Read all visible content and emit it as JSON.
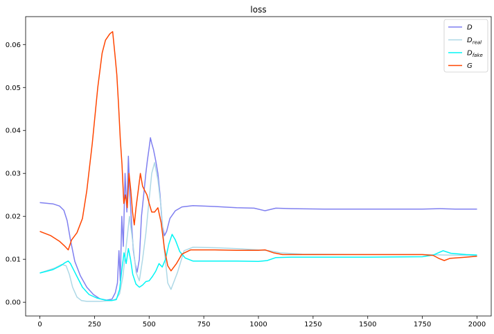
{
  "chart_data": {
    "type": "line",
    "title": "loss",
    "xlabel": "",
    "ylabel": "",
    "xlim": [
      -65,
      2065
    ],
    "ylim": [
      -0.0032,
      0.0665
    ],
    "xticks": [
      0,
      250,
      500,
      750,
      1000,
      1250,
      1500,
      1750,
      2000
    ],
    "yticks": [
      0.0,
      0.01,
      0.02,
      0.03,
      0.04,
      0.05,
      0.06
    ],
    "ytick_labels": [
      "0.00",
      "0.01",
      "0.02",
      "0.03",
      "0.04",
      "0.05",
      "0.06"
    ],
    "grid": false,
    "legend_position": "top-right",
    "series": [
      {
        "name": "D",
        "sub": "",
        "color": "#7f7ff0",
        "points": [
          [
            0,
            0.0232
          ],
          [
            60,
            0.0229
          ],
          [
            90,
            0.0224
          ],
          [
            110,
            0.0214
          ],
          [
            125,
            0.019
          ],
          [
            140,
            0.0145
          ],
          [
            160,
            0.0095
          ],
          [
            185,
            0.0062
          ],
          [
            215,
            0.0035
          ],
          [
            245,
            0.0018
          ],
          [
            275,
            0.0008
          ],
          [
            305,
            0.0005
          ],
          [
            330,
            0.0007
          ],
          [
            345,
            0.0022
          ],
          [
            355,
            0.0045
          ],
          [
            362,
            0.012
          ],
          [
            368,
            0.005
          ],
          [
            375,
            0.02
          ],
          [
            382,
            0.013
          ],
          [
            390,
            0.03
          ],
          [
            398,
            0.021
          ],
          [
            405,
            0.034
          ],
          [
            412,
            0.025
          ],
          [
            420,
            0.018
          ],
          [
            428,
            0.012
          ],
          [
            436,
            0.009
          ],
          [
            445,
            0.007
          ],
          [
            455,
            0.01
          ],
          [
            465,
            0.02
          ],
          [
            475,
            0.025
          ],
          [
            485,
            0.03
          ],
          [
            492,
            0.033
          ],
          [
            500,
            0.036
          ],
          [
            506,
            0.0383
          ],
          [
            512,
            0.037
          ],
          [
            520,
            0.0355
          ],
          [
            530,
            0.033
          ],
          [
            540,
            0.03
          ],
          [
            550,
            0.025
          ],
          [
            560,
            0.018
          ],
          [
            570,
            0.0155
          ],
          [
            580,
            0.0165
          ],
          [
            595,
            0.0195
          ],
          [
            620,
            0.0213
          ],
          [
            650,
            0.0222
          ],
          [
            700,
            0.0225
          ],
          [
            800,
            0.0223
          ],
          [
            900,
            0.022
          ],
          [
            980,
            0.0219
          ],
          [
            1030,
            0.0213
          ],
          [
            1080,
            0.0219
          ],
          [
            1150,
            0.0218
          ],
          [
            1300,
            0.0217
          ],
          [
            1500,
            0.0217
          ],
          [
            1750,
            0.0217
          ],
          [
            1830,
            0.0218
          ],
          [
            1900,
            0.0217
          ],
          [
            2000,
            0.0217
          ]
        ]
      },
      {
        "name": "D",
        "sub": "real",
        "color": "#add8e6",
        "points": [
          [
            0,
            0.0068
          ],
          [
            70,
            0.008
          ],
          [
            100,
            0.0088
          ],
          [
            120,
            0.0085
          ],
          [
            135,
            0.0065
          ],
          [
            150,
            0.0035
          ],
          [
            170,
            0.0012
          ],
          [
            190,
            0.0004
          ],
          [
            215,
            0.0002
          ],
          [
            245,
            0.0002
          ],
          [
            275,
            0.0002
          ],
          [
            305,
            0.0003
          ],
          [
            330,
            0.0004
          ],
          [
            350,
            0.0008
          ],
          [
            365,
            0.002
          ],
          [
            380,
            0.006
          ],
          [
            395,
            0.013
          ],
          [
            410,
            0.02
          ],
          [
            425,
            0.014
          ],
          [
            440,
            0.007
          ],
          [
            455,
            0.005
          ],
          [
            470,
            0.01
          ],
          [
            485,
            0.016
          ],
          [
            500,
            0.024
          ],
          [
            512,
            0.03
          ],
          [
            525,
            0.0325
          ],
          [
            540,
            0.0285
          ],
          [
            555,
            0.022
          ],
          [
            570,
            0.012
          ],
          [
            585,
            0.0045
          ],
          [
            600,
            0.003
          ],
          [
            630,
            0.007
          ],
          [
            660,
            0.012
          ],
          [
            700,
            0.0128
          ],
          [
            800,
            0.0127
          ],
          [
            900,
            0.0125
          ],
          [
            1000,
            0.0122
          ],
          [
            1050,
            0.012
          ],
          [
            1100,
            0.0115
          ],
          [
            1200,
            0.0112
          ],
          [
            1500,
            0.0111
          ],
          [
            1750,
            0.0111
          ],
          [
            1850,
            0.011
          ],
          [
            2000,
            0.0109
          ]
        ]
      },
      {
        "name": "D",
        "sub": "fake",
        "color": "#00f5f5",
        "points": [
          [
            0,
            0.0068
          ],
          [
            60,
            0.0076
          ],
          [
            95,
            0.0085
          ],
          [
            115,
            0.0092
          ],
          [
            130,
            0.0096
          ],
          [
            140,
            0.009
          ],
          [
            155,
            0.0075
          ],
          [
            170,
            0.006
          ],
          [
            195,
            0.0035
          ],
          [
            225,
            0.0018
          ],
          [
            260,
            0.001
          ],
          [
            300,
            0.0005
          ],
          [
            330,
            0.0004
          ],
          [
            350,
            0.0006
          ],
          [
            365,
            0.003
          ],
          [
            375,
            0.0075
          ],
          [
            385,
            0.0115
          ],
          [
            395,
            0.009
          ],
          [
            405,
            0.0125
          ],
          [
            415,
            0.01
          ],
          [
            425,
            0.0065
          ],
          [
            440,
            0.0042
          ],
          [
            455,
            0.0035
          ],
          [
            470,
            0.004
          ],
          [
            485,
            0.0048
          ],
          [
            500,
            0.005
          ],
          [
            515,
            0.006
          ],
          [
            530,
            0.0072
          ],
          [
            545,
            0.009
          ],
          [
            560,
            0.0082
          ],
          [
            575,
            0.01
          ],
          [
            590,
            0.0135
          ],
          [
            605,
            0.0158
          ],
          [
            620,
            0.0145
          ],
          [
            640,
            0.0118
          ],
          [
            665,
            0.0103
          ],
          [
            700,
            0.0096
          ],
          [
            800,
            0.0096
          ],
          [
            900,
            0.0096
          ],
          [
            1000,
            0.0095
          ],
          [
            1040,
            0.0097
          ],
          [
            1080,
            0.0104
          ],
          [
            1150,
            0.0105
          ],
          [
            1500,
            0.0105
          ],
          [
            1750,
            0.0106
          ],
          [
            1800,
            0.011
          ],
          [
            1845,
            0.012
          ],
          [
            1880,
            0.0114
          ],
          [
            1950,
            0.0111
          ],
          [
            2000,
            0.011
          ]
        ]
      },
      {
        "name": "G",
        "sub": "",
        "color": "#ff4500",
        "points": [
          [
            0,
            0.0165
          ],
          [
            50,
            0.0155
          ],
          [
            90,
            0.0142
          ],
          [
            115,
            0.013
          ],
          [
            130,
            0.0122
          ],
          [
            145,
            0.0145
          ],
          [
            170,
            0.0162
          ],
          [
            195,
            0.0195
          ],
          [
            215,
            0.026
          ],
          [
            240,
            0.037
          ],
          [
            265,
            0.05
          ],
          [
            285,
            0.058
          ],
          [
            300,
            0.061
          ],
          [
            320,
            0.0625
          ],
          [
            333,
            0.063
          ],
          [
            343,
            0.058
          ],
          [
            352,
            0.053
          ],
          [
            360,
            0.046
          ],
          [
            368,
            0.038
          ],
          [
            376,
            0.032
          ],
          [
            384,
            0.023
          ],
          [
            392,
            0.025
          ],
          [
            400,
            0.022
          ],
          [
            408,
            0.03
          ],
          [
            416,
            0.026
          ],
          [
            424,
            0.021
          ],
          [
            432,
            0.018
          ],
          [
            440,
            0.022
          ],
          [
            450,
            0.026
          ],
          [
            460,
            0.03
          ],
          [
            470,
            0.027
          ],
          [
            480,
            0.026
          ],
          [
            490,
            0.025
          ],
          [
            500,
            0.023
          ],
          [
            512,
            0.021
          ],
          [
            525,
            0.021
          ],
          [
            540,
            0.022
          ],
          [
            555,
            0.0185
          ],
          [
            570,
            0.0125
          ],
          [
            585,
            0.0085
          ],
          [
            600,
            0.0073
          ],
          [
            625,
            0.009
          ],
          [
            650,
            0.0112
          ],
          [
            690,
            0.0122
          ],
          [
            800,
            0.0122
          ],
          [
            900,
            0.0121
          ],
          [
            1000,
            0.0121
          ],
          [
            1030,
            0.0122
          ],
          [
            1070,
            0.0115
          ],
          [
            1110,
            0.0111
          ],
          [
            1300,
            0.0111
          ],
          [
            1500,
            0.0111
          ],
          [
            1750,
            0.0111
          ],
          [
            1800,
            0.0109
          ],
          [
            1825,
            0.0102
          ],
          [
            1850,
            0.0097
          ],
          [
            1875,
            0.0102
          ],
          [
            1950,
            0.0105
          ],
          [
            2000,
            0.0107
          ]
        ]
      }
    ]
  }
}
